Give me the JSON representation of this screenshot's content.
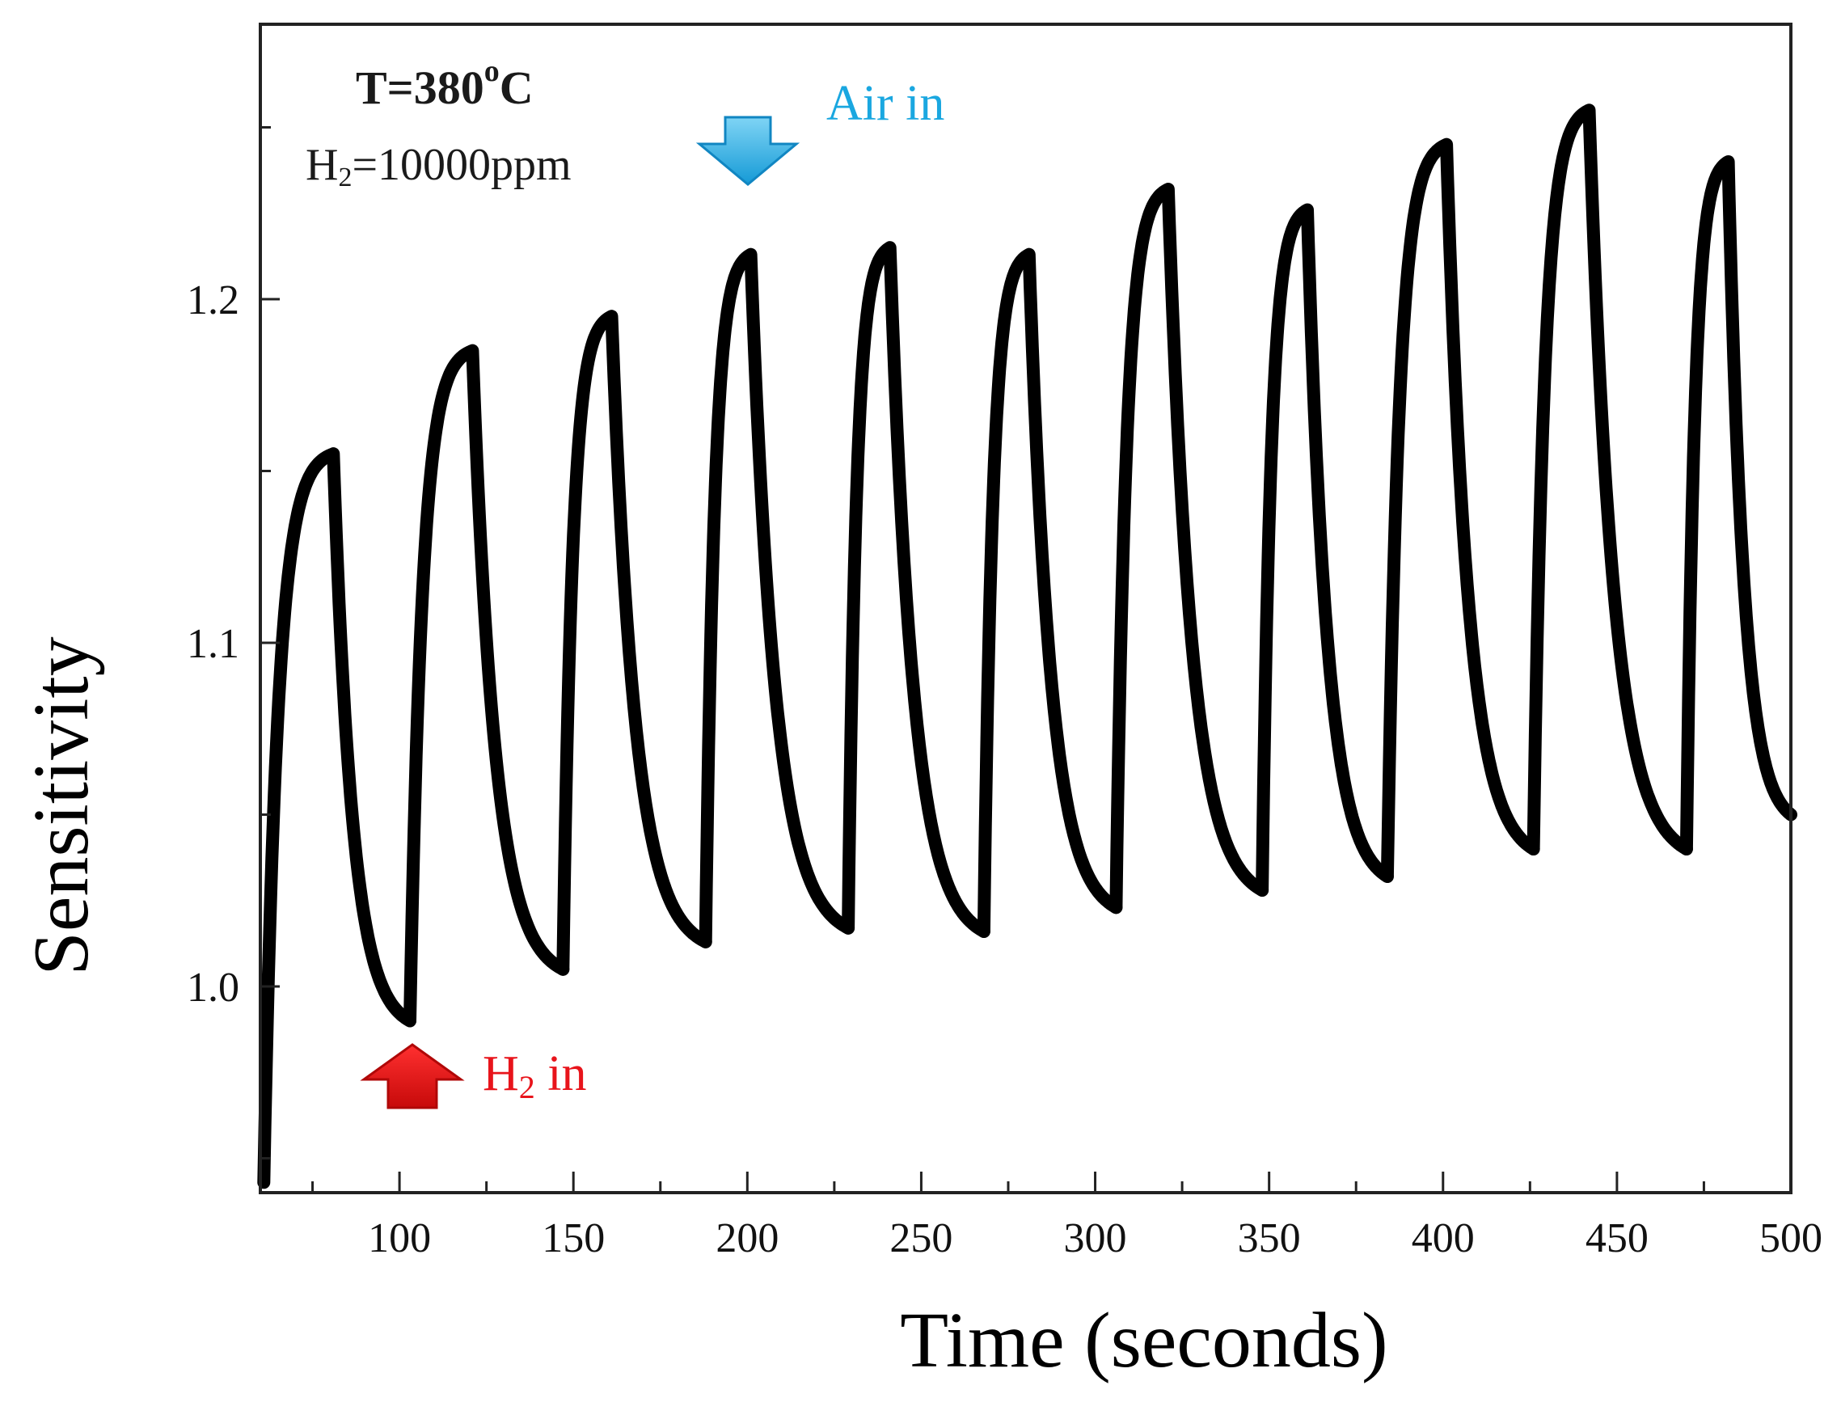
{
  "chart_data": {
    "type": "line",
    "title": "",
    "xlabel": "Time (seconds)",
    "ylabel": "Sensitivity",
    "xlim": [
      60,
      500
    ],
    "ylim": [
      0.94,
      1.28
    ],
    "x_ticks": [
      100,
      150,
      200,
      250,
      300,
      350,
      400,
      450,
      500
    ],
    "x_tick_labels": [
      "100",
      "150",
      "200",
      "250",
      "300",
      "350",
      "400",
      "450",
      "500"
    ],
    "y_ticks": [
      1.0,
      1.1,
      1.2
    ],
    "y_tick_labels": [
      "1.0",
      "1.1",
      "1.2"
    ],
    "grid": false,
    "legend": "none",
    "series": [
      {
        "name": "Sensitivity",
        "color": "#000000",
        "cycles": [
          {
            "start_x": 61,
            "start_y": 0.943,
            "peak_x": 81,
            "peak_y": 1.155,
            "min_x": 103,
            "min_y": 0.99
          },
          {
            "start_x": 103,
            "start_y": 0.99,
            "peak_x": 121,
            "peak_y": 1.185,
            "min_x": 147,
            "min_y": 1.005
          },
          {
            "start_x": 147,
            "start_y": 1.005,
            "peak_x": 161,
            "peak_y": 1.195,
            "min_x": 188,
            "min_y": 1.013
          },
          {
            "start_x": 188,
            "start_y": 1.013,
            "peak_x": 201,
            "peak_y": 1.213,
            "min_x": 229,
            "min_y": 1.017
          },
          {
            "start_x": 229,
            "start_y": 1.017,
            "peak_x": 241,
            "peak_y": 1.215,
            "min_x": 268,
            "min_y": 1.016
          },
          {
            "start_x": 268,
            "start_y": 1.016,
            "peak_x": 281,
            "peak_y": 1.213,
            "min_x": 306,
            "min_y": 1.023
          },
          {
            "start_x": 306,
            "start_y": 1.023,
            "peak_x": 321,
            "peak_y": 1.232,
            "min_x": 348,
            "min_y": 1.028
          },
          {
            "start_x": 348,
            "start_y": 1.028,
            "peak_x": 361,
            "peak_y": 1.226,
            "min_x": 384,
            "min_y": 1.032
          },
          {
            "start_x": 384,
            "start_y": 1.032,
            "peak_x": 401,
            "peak_y": 1.245,
            "min_x": 426,
            "min_y": 1.04
          },
          {
            "start_x": 426,
            "start_y": 1.04,
            "peak_x": 442,
            "peak_y": 1.255,
            "min_x": 470,
            "min_y": 1.04
          },
          {
            "start_x": 470,
            "start_y": 1.04,
            "peak_x": 482,
            "peak_y": 1.24,
            "min_x": 500,
            "min_y": 1.05
          }
        ]
      }
    ],
    "annotations": {
      "temperature": {
        "text": "T=380",
        "superscript": "o",
        "unit": "C"
      },
      "concentration": {
        "prefix": "H",
        "subscript": "2",
        "text": "=10000ppm"
      },
      "air_in": {
        "text": "Air in",
        "color": "#1aa7e0",
        "x": 201
      },
      "h2_in": {
        "prefix": "H",
        "subscript": "2",
        "text": " in",
        "color": "#e8141b",
        "x": 103
      }
    }
  }
}
